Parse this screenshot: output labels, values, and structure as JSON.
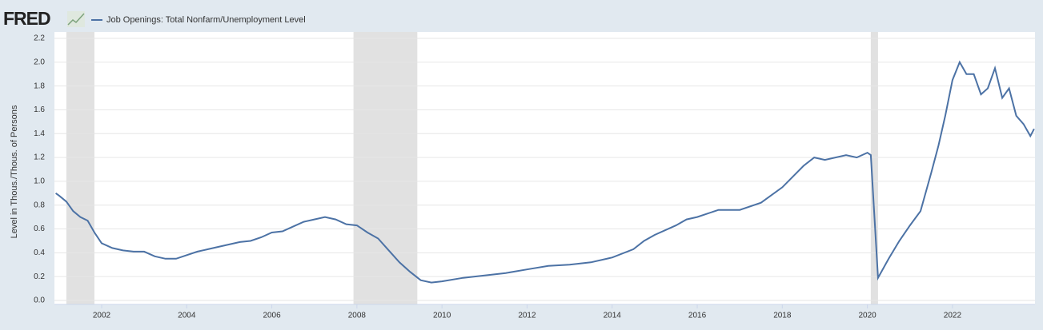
{
  "brand": "FRED",
  "chart_data": {
    "type": "line",
    "ylabel": "Level in Thous./Thous. of Persons",
    "x": [
      2000.92,
      2001.0,
      2001.17,
      2001.33,
      2001.5,
      2001.67,
      2001.83,
      2002.0,
      2002.25,
      2002.5,
      2002.75,
      2003.0,
      2003.25,
      2003.5,
      2003.75,
      2004.0,
      2004.25,
      2004.5,
      2004.75,
      2005.0,
      2005.25,
      2005.5,
      2005.75,
      2006.0,
      2006.25,
      2006.5,
      2006.75,
      2007.0,
      2007.25,
      2007.5,
      2007.75,
      2008.0,
      2008.25,
      2008.5,
      2008.75,
      2009.0,
      2009.25,
      2009.5,
      2009.75,
      2010.0,
      2010.5,
      2011.0,
      2011.5,
      2012.0,
      2012.5,
      2013.0,
      2013.5,
      2014.0,
      2014.5,
      2014.75,
      2015.0,
      2015.5,
      2015.75,
      2016.0,
      2016.5,
      2017.0,
      2017.5,
      2018.0,
      2018.5,
      2018.75,
      2019.0,
      2019.5,
      2019.75,
      2020.0,
      2020.08,
      2020.25,
      2020.5,
      2020.75,
      2021.0,
      2021.25,
      2021.5,
      2021.67,
      2021.83,
      2022.0,
      2022.17,
      2022.33,
      2022.5,
      2022.67,
      2022.83,
      2023.0,
      2023.17,
      2023.33,
      2023.5,
      2023.67,
      2023.83,
      2023.92
    ],
    "series": [
      {
        "name": "Job Openings: Total Nonfarm/Unemployment Level",
        "color": "#4c72a5",
        "values": [
          0.9,
          0.88,
          0.83,
          0.75,
          0.7,
          0.67,
          0.57,
          0.48,
          0.44,
          0.42,
          0.41,
          0.41,
          0.37,
          0.35,
          0.35,
          0.38,
          0.41,
          0.43,
          0.45,
          0.47,
          0.49,
          0.5,
          0.53,
          0.57,
          0.58,
          0.62,
          0.66,
          0.68,
          0.7,
          0.68,
          0.64,
          0.63,
          0.57,
          0.52,
          0.42,
          0.32,
          0.24,
          0.17,
          0.15,
          0.16,
          0.19,
          0.21,
          0.23,
          0.26,
          0.29,
          0.3,
          0.32,
          0.36,
          0.43,
          0.5,
          0.55,
          0.63,
          0.68,
          0.7,
          0.76,
          0.76,
          0.82,
          0.95,
          1.13,
          1.2,
          1.18,
          1.22,
          1.2,
          1.24,
          1.22,
          0.19,
          0.35,
          0.5,
          0.63,
          0.75,
          1.07,
          1.3,
          1.55,
          1.85,
          2.0,
          1.9,
          1.9,
          1.73,
          1.78,
          1.95,
          1.7,
          1.78,
          1.55,
          1.48,
          1.38,
          1.44
        ]
      }
    ],
    "recessions": [
      [
        2001.17,
        2001.83
      ],
      [
        2007.92,
        2009.42
      ],
      [
        2020.08,
        2020.25
      ]
    ],
    "recession_color": "#e1e1e1",
    "xlim": [
      2000.89,
      2023.94
    ],
    "xticks": [
      2002,
      2004,
      2006,
      2008,
      2010,
      2012,
      2014,
      2016,
      2018,
      2020,
      2022
    ],
    "ylim": [
      0,
      2.2
    ],
    "yticks": [
      {
        "value": 0,
        "label": "0.0"
      },
      0.2,
      0.4,
      0.6,
      0.8,
      {
        "value": 1,
        "label": "1.0"
      },
      1.2,
      1.4,
      1.6,
      1.8,
      {
        "value": 2,
        "label": "2.0"
      },
      2.2
    ],
    "grid": true
  }
}
